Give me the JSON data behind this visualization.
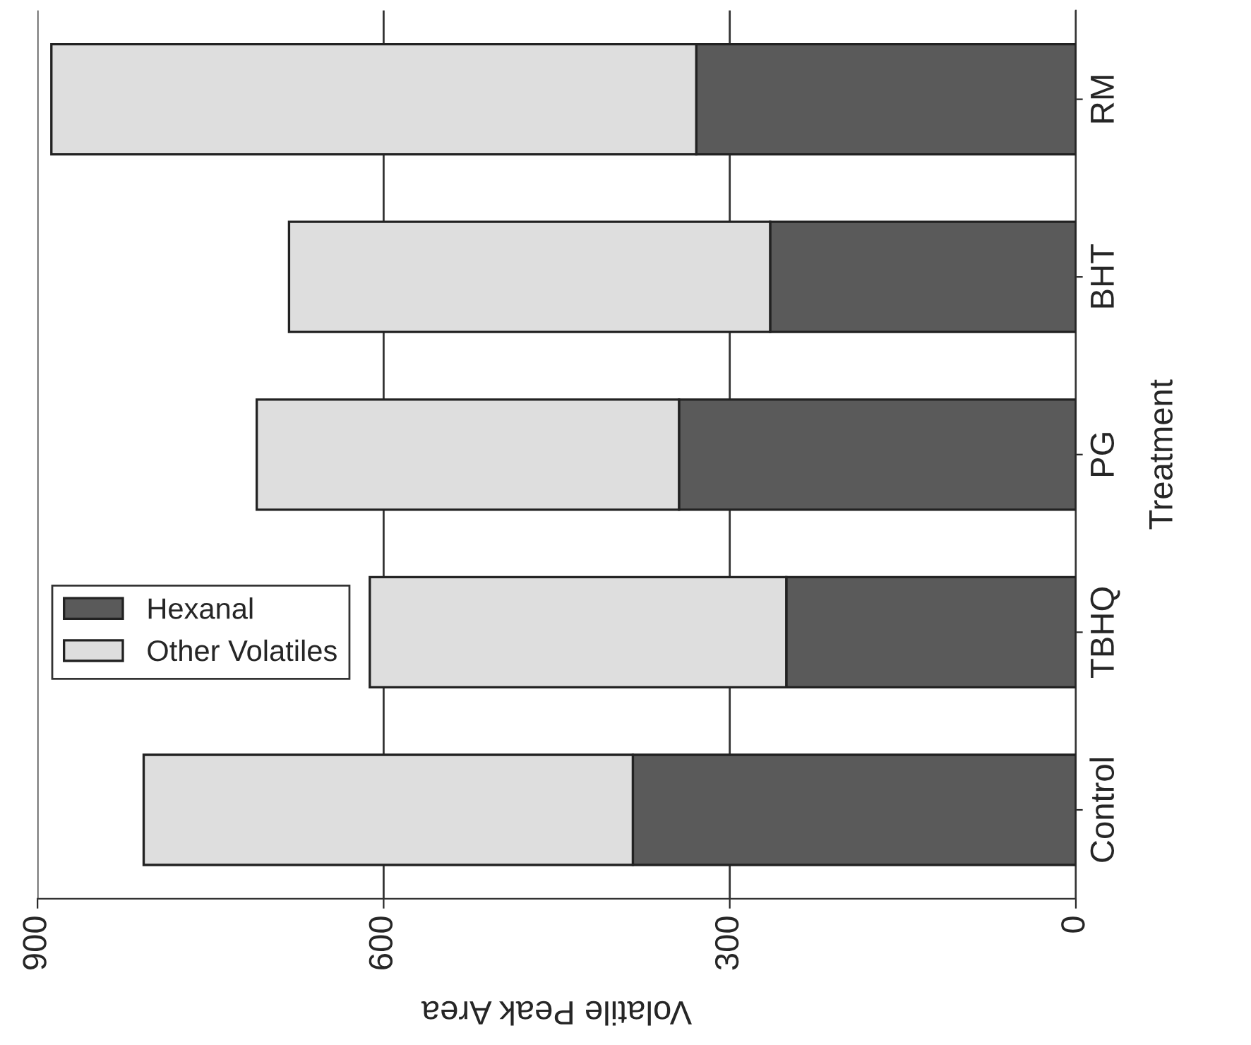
{
  "chart_data": {
    "type": "bar",
    "orientation": "horizontal",
    "stacked": true,
    "xlabel": "Volatile Peak Area",
    "ylabel": "Treatment",
    "categories": [
      "RM",
      "BHT",
      "PG",
      "TBHQ",
      "Control"
    ],
    "series": [
      {
        "name": "Hexanal",
        "color": "#5a5a5a",
        "values": [
          329,
          265,
          344,
          251,
          384
        ]
      },
      {
        "name": "Other Volatiles",
        "color": "#dedede",
        "values": [
          559,
          417,
          366,
          361,
          424
        ]
      }
    ],
    "xlim": [
      900,
      0
    ],
    "xticks": [
      900,
      600,
      300,
      0
    ],
    "grid": "x",
    "legend": "left"
  }
}
